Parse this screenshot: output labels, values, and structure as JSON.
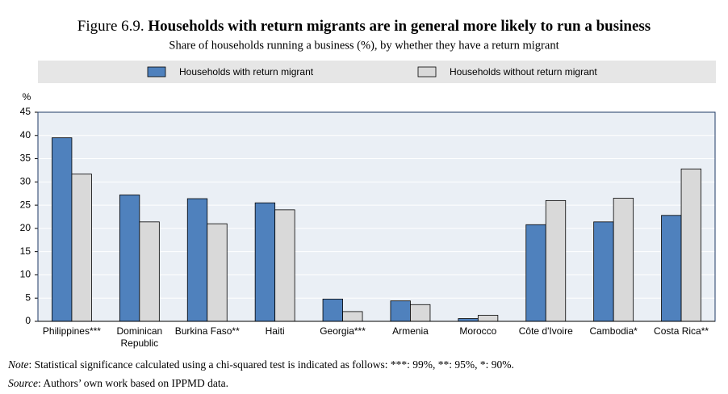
{
  "chart_data": {
    "type": "bar",
    "title_prefix": "Figure 6.9.",
    "title": "Households with return migrants are in general more likely to run a business",
    "subtitle": "Share of households running a business (%), by whether they have a return migrant",
    "y_unit": "%",
    "categories": [
      "Philippines***",
      "Dominican Republic",
      "Burkina Faso**",
      "Haiti",
      "Georgia***",
      "Armenia",
      "Morocco",
      "Côte d'Ivoire",
      "Cambodia*",
      "Costa Rica**"
    ],
    "series": [
      {
        "name": "Households with return migrant",
        "color": "#4f81bd",
        "values": [
          39.5,
          27.2,
          26.4,
          25.5,
          4.8,
          4.4,
          0.6,
          20.8,
          21.4,
          22.8
        ]
      },
      {
        "name": "Households without return migrant",
        "color": "#d9d9d9",
        "values": [
          31.7,
          21.4,
          21.0,
          24.0,
          2.1,
          3.6,
          1.3,
          26.0,
          26.5,
          32.8
        ]
      }
    ],
    "ylim": [
      0,
      45
    ],
    "yticks": [
      0,
      5,
      10,
      15,
      20,
      25,
      30,
      35,
      40,
      45
    ],
    "grid": true,
    "note_label": "Note",
    "note": ": Statistical significance calculated using a chi-squared test is indicated as follows: ***: 99%, **: 95%, *: 90%.",
    "source_label": "Source",
    "source": ": Authors’ own work based on IPPMD data."
  }
}
